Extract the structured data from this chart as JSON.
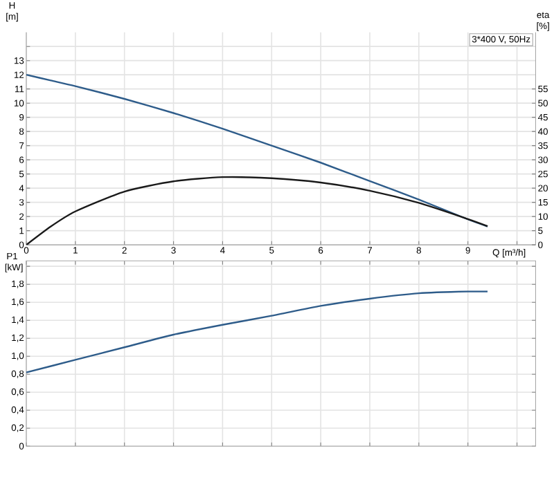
{
  "chart_data": [
    {
      "type": "line",
      "annotations": [
        "3*400 V, 50Hz"
      ],
      "xlabel": "Q [m³/h]",
      "ylabel": "H [m]",
      "y2label": "eta [%]",
      "x": [
        0,
        0.5,
        1,
        2,
        3,
        4,
        5,
        6,
        7,
        8,
        9,
        9.4
      ],
      "xlim": [
        0,
        10.38
      ],
      "xticks": [
        0,
        1,
        2,
        3,
        4,
        5,
        6,
        7,
        8,
        9,
        {
          "value": 10,
          "label": null
        }
      ],
      "ylim": [
        0,
        15
      ],
      "yticks": [
        0,
        1,
        2,
        3,
        4,
        5,
        6,
        7,
        8,
        9,
        10,
        11,
        12,
        13,
        {
          "value": 14,
          "label": null
        }
      ],
      "y2lim": [
        0,
        75
      ],
      "y2ticks": [
        0,
        5,
        10,
        15,
        20,
        25,
        30,
        35,
        40,
        45,
        50,
        55
      ],
      "grid": true,
      "series": [
        {
          "color": "#2e5c8a",
          "values": [
            12,
            11.6,
            11.2,
            10.3,
            9.3,
            8.2,
            7.0,
            5.8,
            4.5,
            3.2,
            1.8,
            1.3
          ]
        },
        {
          "color": "#1a1a1a",
          "axis": "y2",
          "values": [
            0,
            6.5,
            11.8,
            18.8,
            22.4,
            23.9,
            23.5,
            22,
            19.1,
            14.8,
            9.1,
            6.6
          ]
        }
      ]
    },
    {
      "type": "line",
      "ylabel": "P1 [kW]",
      "tick_labels": "y",
      "x": [
        0,
        1,
        2,
        3,
        4,
        5,
        6,
        7,
        8,
        9,
        9.4
      ],
      "xlim": [
        0,
        10.38
      ],
      "xticks": [
        0,
        1,
        2,
        3,
        4,
        5,
        6,
        7,
        8,
        9,
        10
      ],
      "ylim": [
        0,
        2.06
      ],
      "yticks": [
        0,
        {
          "value": 0.2,
          "label": "0,2"
        },
        {
          "value": 0.4,
          "label": "0,4"
        },
        {
          "value": 0.6,
          "label": "0,6"
        },
        {
          "value": 0.8,
          "label": "0,8"
        },
        {
          "value": 1.0,
          "label": "1,0"
        },
        {
          "value": 1.2,
          "label": "1,2"
        },
        {
          "value": 1.4,
          "label": "1,4"
        },
        {
          "value": 1.6,
          "label": "1,6"
        },
        {
          "value": 1.8,
          "label": "1,8"
        },
        {
          "value": 2.0,
          "label": null
        }
      ],
      "grid": true,
      "series": [
        {
          "color": "#2e5c8a",
          "values": [
            0.82,
            0.96,
            1.1,
            1.24,
            1.35,
            1.45,
            1.56,
            1.64,
            1.7,
            1.72,
            1.72
          ]
        }
      ]
    }
  ]
}
